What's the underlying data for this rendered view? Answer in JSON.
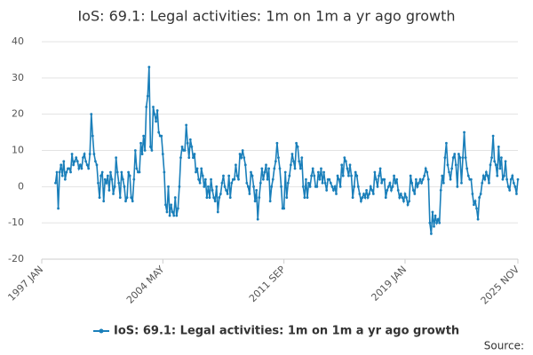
{
  "chart_data": {
    "type": "line",
    "title": "IoS: 69.1: Legal activities: 1m on 1m a yr ago growth",
    "source_label": "Source:",
    "categories": [
      "1997 JAN",
      null,
      null,
      null,
      null,
      null,
      null,
      null,
      null,
      null,
      null,
      null,
      null,
      null,
      null,
      null,
      null,
      null,
      null,
      null,
      null,
      null,
      null,
      null,
      null,
      null,
      null,
      null,
      null,
      null,
      null,
      null,
      null,
      null,
      null,
      null,
      null,
      null,
      null,
      null,
      null,
      null,
      null,
      null,
      null,
      null,
      null,
      null,
      null,
      null,
      null,
      null,
      null,
      null,
      null,
      null,
      null,
      null,
      null,
      null,
      null,
      null,
      null,
      null,
      null,
      null,
      null,
      null,
      null,
      null,
      null,
      null,
      null,
      null,
      null,
      null,
      null,
      null,
      null,
      null,
      null,
      null,
      null,
      null,
      null,
      null,
      null,
      null,
      "2004 MAY",
      null,
      null,
      null,
      null,
      null,
      null,
      null,
      null,
      null,
      null,
      null,
      null,
      null,
      null,
      null,
      null,
      null,
      null,
      null,
      null,
      null,
      null,
      null,
      null,
      null,
      null,
      null,
      null,
      null,
      null,
      null,
      null,
      null,
      null,
      null,
      null,
      null,
      null,
      null,
      null,
      null,
      null,
      null,
      null,
      null,
      null,
      null,
      null,
      null,
      null,
      null,
      null,
      null,
      null,
      null,
      null,
      null,
      null,
      null,
      null,
      null,
      null,
      null,
      null,
      null,
      null,
      null,
      null,
      null,
      null,
      null,
      null,
      null,
      null,
      null,
      null,
      null,
      null,
      null,
      null,
      null,
      null,
      null,
      null,
      null,
      null,
      null,
      "2011 SEP",
      null,
      null,
      null,
      null,
      null,
      null,
      null,
      null,
      null,
      null,
      null,
      null,
      null,
      null,
      null,
      null,
      null,
      null,
      null,
      null,
      null,
      null,
      null,
      null,
      null,
      null,
      null,
      null,
      null,
      null,
      null,
      null,
      null,
      null,
      null,
      null,
      null,
      null,
      null,
      null,
      null,
      null,
      null,
      null,
      null,
      null,
      null,
      null,
      null,
      null,
      null,
      null,
      null,
      null,
      null,
      null,
      null,
      null,
      null,
      null,
      null,
      null,
      null,
      null,
      null,
      null,
      null,
      null,
      null,
      null,
      null,
      null,
      null,
      null,
      null,
      null,
      null,
      null,
      null,
      null,
      null,
      null,
      null,
      null,
      null,
      null,
      null,
      "2019 JAN",
      null,
      null,
      null,
      null,
      null,
      null,
      null,
      null,
      null,
      null,
      null,
      null,
      null,
      null,
      null,
      null,
      null,
      null,
      null,
      null,
      null,
      null,
      null,
      null,
      null,
      null,
      null,
      null,
      null,
      null,
      null,
      null,
      null,
      null,
      null,
      null,
      null,
      null,
      null,
      null,
      null,
      null,
      null,
      null,
      null,
      null,
      null,
      null,
      null,
      null,
      null,
      null,
      null,
      null,
      null,
      null,
      null,
      null,
      null,
      null,
      null,
      null,
      null,
      null,
      null,
      null,
      null,
      null,
      null,
      null,
      null,
      null,
      null,
      null,
      null,
      null,
      null,
      null,
      null,
      null,
      null,
      "2025 NOV"
    ],
    "series": [
      {
        "name": "IoS: 69.1: Legal activities: 1m on 1m a yr ago growth",
        "color": "#1a7fba",
        "values": [
          null,
          null,
          null,
          null,
          null,
          null,
          null,
          null,
          null,
          null,
          1,
          4,
          -6,
          4,
          6,
          3,
          7,
          2,
          4,
          5,
          5,
          4,
          9,
          6,
          7,
          8,
          7,
          5,
          6,
          5,
          8,
          9,
          7,
          6,
          5,
          9,
          20,
          14,
          9,
          7,
          6,
          1,
          -3,
          3,
          4,
          -4,
          2,
          1,
          3,
          -1,
          4,
          2,
          -2,
          0,
          8,
          4,
          1,
          -3,
          4,
          2,
          0,
          -4,
          -3,
          4,
          3,
          -3,
          -4,
          2,
          10,
          5,
          4,
          4,
          12,
          9,
          14,
          10,
          22,
          25,
          33,
          11,
          10,
          22,
          20,
          18,
          21,
          15,
          14,
          14,
          9,
          4,
          -5,
          -7,
          0,
          -8,
          -5,
          -7,
          -8,
          -3,
          -8,
          -6,
          0,
          8,
          11,
          10,
          10,
          17,
          12,
          8,
          13,
          11,
          8,
          9,
          4,
          5,
          2,
          1,
          5,
          3,
          0,
          2,
          -3,
          0,
          -3,
          2,
          -1,
          -3,
          -4,
          0,
          -7,
          -3,
          -2,
          1,
          3,
          0,
          -1,
          -2,
          3,
          -3,
          1,
          2,
          2,
          6,
          3,
          2,
          9,
          8,
          10,
          8,
          6,
          1,
          0,
          -2,
          4,
          3,
          0,
          -4,
          -1,
          -9,
          -3,
          1,
          5,
          2,
          4,
          6,
          2,
          5,
          -4,
          0,
          2,
          5,
          7,
          12,
          8,
          5,
          0,
          -6,
          -6,
          4,
          -3,
          1,
          3,
          6,
          9,
          7,
          5,
          12,
          11,
          7,
          5,
          8,
          0,
          -3,
          2,
          -3,
          1,
          0,
          3,
          5,
          3,
          0,
          0,
          4,
          2,
          5,
          1,
          4,
          1,
          -1,
          2,
          2,
          1,
          0,
          -1,
          0,
          -2,
          3,
          2,
          0,
          6,
          3,
          8,
          7,
          5,
          3,
          6,
          3,
          -3,
          0,
          4,
          3,
          0,
          -2,
          -4,
          -3,
          -2,
          -3,
          -1,
          -3,
          -2,
          0,
          -1,
          -2,
          4,
          2,
          0,
          3,
          5,
          1,
          2,
          2,
          -3,
          -1,
          0,
          1,
          -1,
          0,
          3,
          1,
          2,
          -1,
          -3,
          -2,
          -3,
          -4,
          -2,
          -3,
          -5,
          -4,
          3,
          1,
          -1,
          -2,
          2,
          0,
          1,
          2,
          1,
          2,
          3,
          5,
          4,
          2,
          -10,
          -13,
          -7,
          -11,
          -8,
          -10,
          -9,
          -10,
          -1,
          3,
          1,
          8,
          12,
          6,
          4,
          2,
          5,
          8,
          9,
          6,
          0,
          9,
          8,
          1,
          8,
          15,
          8,
          5,
          3,
          2,
          2,
          -2,
          -5,
          -4,
          -6,
          -9,
          -3,
          -2,
          1,
          3,
          2,
          4,
          3,
          1,
          6,
          8,
          14,
          7,
          6,
          3,
          11,
          5,
          8,
          2,
          3,
          7,
          2,
          0,
          -1,
          2,
          3,
          1,
          0,
          -2,
          2
        ]
      }
    ],
    "ylim": [
      -20,
      40
    ],
    "yticks": [
      -20,
      -10,
      0,
      10,
      20,
      30,
      40
    ],
    "grid": true
  }
}
